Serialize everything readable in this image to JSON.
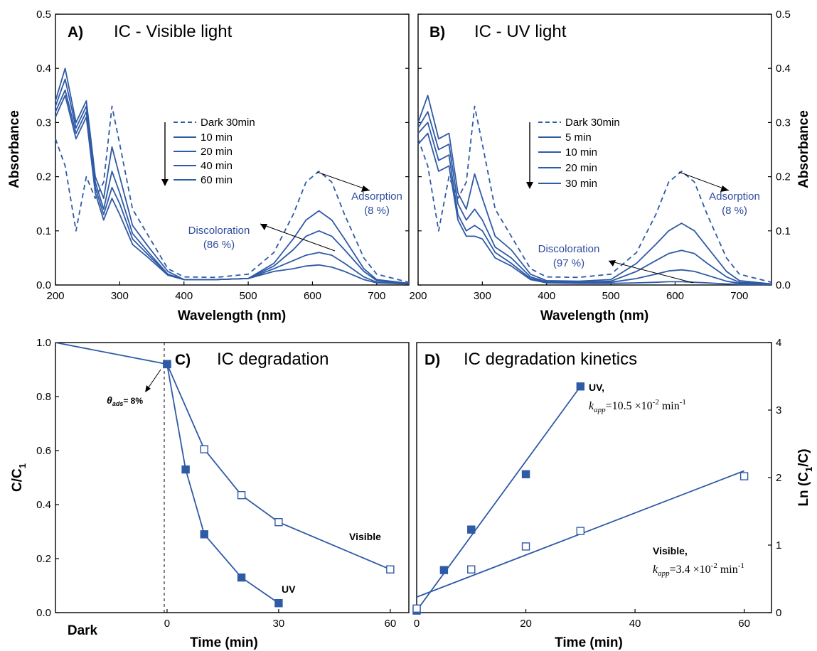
{
  "colors": {
    "series": "#2f5aa6",
    "annotation": "#2f4d9e",
    "axis": "#000000"
  },
  "chart_data": [
    {
      "panel": "A",
      "type": "line",
      "label": "A)",
      "title": "IC - Visible light",
      "xlabel": "Wavelength (nm)",
      "ylabel": "Absorbance",
      "xlim": [
        200,
        750
      ],
      "ylim": [
        0,
        0.5
      ],
      "xticks": [
        "200",
        "300",
        "400",
        "500",
        "600",
        "700"
      ],
      "yticks": [
        "0.0",
        "0.1",
        "0.2",
        "0.3",
        "0.4",
        "0.5"
      ],
      "series": [
        {
          "name": "Dark 30min",
          "style": "dashed",
          "x": [
            200,
            215,
            232,
            248,
            262,
            275,
            288,
            300,
            320,
            345,
            375,
            400,
            450,
            500,
            540,
            570,
            590,
            610,
            630,
            650,
            680,
            700,
            750
          ],
          "y": [
            0.27,
            0.22,
            0.1,
            0.2,
            0.16,
            0.19,
            0.33,
            0.26,
            0.14,
            0.09,
            0.03,
            0.015,
            0.014,
            0.02,
            0.06,
            0.13,
            0.19,
            0.21,
            0.19,
            0.13,
            0.05,
            0.02,
            0.005
          ]
        },
        {
          "name": "10 min",
          "style": "solid",
          "x": [
            200,
            215,
            232,
            248,
            262,
            275,
            288,
            300,
            320,
            345,
            375,
            400,
            450,
            500,
            540,
            570,
            590,
            610,
            630,
            650,
            680,
            700,
            750
          ],
          "y": [
            0.34,
            0.4,
            0.3,
            0.34,
            0.2,
            0.16,
            0.255,
            0.2,
            0.11,
            0.07,
            0.025,
            0.01,
            0.01,
            0.012,
            0.04,
            0.085,
            0.12,
            0.137,
            0.12,
            0.085,
            0.03,
            0.01,
            0.003
          ]
        },
        {
          "name": "20 min",
          "style": "solid",
          "x": [
            200,
            215,
            232,
            248,
            262,
            275,
            288,
            300,
            320,
            345,
            375,
            400,
            450,
            500,
            540,
            570,
            590,
            610,
            630,
            650,
            680,
            700,
            750
          ],
          "y": [
            0.33,
            0.38,
            0.29,
            0.33,
            0.19,
            0.14,
            0.21,
            0.17,
            0.095,
            0.06,
            0.02,
            0.01,
            0.01,
            0.012,
            0.035,
            0.065,
            0.09,
            0.1,
            0.09,
            0.065,
            0.025,
            0.008,
            0.002
          ]
        },
        {
          "name": "40 min",
          "style": "solid",
          "x": [
            200,
            215,
            232,
            248,
            262,
            275,
            288,
            300,
            320,
            345,
            375,
            400,
            450,
            500,
            540,
            570,
            590,
            610,
            630,
            650,
            680,
            700,
            750
          ],
          "y": [
            0.32,
            0.36,
            0.28,
            0.32,
            0.18,
            0.13,
            0.18,
            0.15,
            0.085,
            0.055,
            0.02,
            0.01,
            0.01,
            0.012,
            0.03,
            0.045,
            0.055,
            0.06,
            0.055,
            0.04,
            0.015,
            0.005,
            0.002
          ]
        },
        {
          "name": "60 min",
          "style": "solid",
          "x": [
            200,
            215,
            232,
            248,
            262,
            275,
            288,
            300,
            320,
            345,
            375,
            400,
            450,
            500,
            540,
            570,
            590,
            610,
            630,
            650,
            680,
            700,
            750
          ],
          "y": [
            0.31,
            0.35,
            0.27,
            0.31,
            0.17,
            0.12,
            0.16,
            0.13,
            0.075,
            0.05,
            0.018,
            0.01,
            0.01,
            0.012,
            0.025,
            0.03,
            0.035,
            0.037,
            0.033,
            0.025,
            0.01,
            0.004,
            0.002
          ]
        }
      ],
      "legend": [
        "Dark 30min",
        "10 min",
        "20 min",
        "40 min",
        "60 min"
      ],
      "annotations": {
        "adsorption": [
          "Adsorption",
          "(8 %)"
        ],
        "discoloration": [
          "Discoloration",
          "(86 %)"
        ]
      }
    },
    {
      "panel": "B",
      "type": "line",
      "label": "B)",
      "title": "IC - UV light",
      "xlabel": "Wavelength (nm)",
      "ylabel": "Absorbance",
      "xlim": [
        200,
        750
      ],
      "ylim": [
        0,
        0.5
      ],
      "xticks": [
        "200",
        "300",
        "400",
        "500",
        "600",
        "700"
      ],
      "yticks": [
        "0.0",
        "0.1",
        "0.2",
        "0.3",
        "0.4",
        "0.5"
      ],
      "series": [
        {
          "name": "Dark 30min",
          "style": "dashed",
          "x": [
            200,
            215,
            232,
            248,
            262,
            275,
            288,
            300,
            320,
            345,
            375,
            400,
            450,
            500,
            540,
            570,
            590,
            610,
            630,
            650,
            680,
            700,
            750
          ],
          "y": [
            0.27,
            0.22,
            0.1,
            0.2,
            0.16,
            0.19,
            0.33,
            0.26,
            0.14,
            0.09,
            0.03,
            0.015,
            0.014,
            0.02,
            0.06,
            0.13,
            0.19,
            0.21,
            0.19,
            0.13,
            0.05,
            0.02,
            0.005
          ]
        },
        {
          "name": "5 min",
          "style": "solid",
          "x": [
            200,
            215,
            232,
            248,
            262,
            275,
            288,
            300,
            320,
            345,
            375,
            400,
            450,
            500,
            540,
            570,
            590,
            610,
            630,
            650,
            680,
            700,
            750
          ],
          "y": [
            0.3,
            0.35,
            0.27,
            0.28,
            0.17,
            0.14,
            0.205,
            0.16,
            0.09,
            0.065,
            0.02,
            0.008,
            0.007,
            0.01,
            0.04,
            0.075,
            0.1,
            0.114,
            0.1,
            0.07,
            0.025,
            0.008,
            0.002
          ]
        },
        {
          "name": "10 min",
          "style": "solid",
          "x": [
            200,
            215,
            232,
            248,
            262,
            275,
            288,
            300,
            320,
            345,
            375,
            400,
            450,
            500,
            540,
            570,
            590,
            610,
            630,
            650,
            680,
            700,
            750
          ],
          "y": [
            0.29,
            0.32,
            0.25,
            0.26,
            0.15,
            0.12,
            0.14,
            0.12,
            0.07,
            0.05,
            0.015,
            0.006,
            0.005,
            0.007,
            0.025,
            0.045,
            0.058,
            0.064,
            0.058,
            0.04,
            0.015,
            0.005,
            0.002
          ]
        },
        {
          "name": "20 min",
          "style": "solid",
          "x": [
            200,
            215,
            232,
            248,
            262,
            275,
            288,
            300,
            320,
            345,
            375,
            400,
            450,
            500,
            540,
            570,
            590,
            610,
            630,
            650,
            680,
            700,
            750
          ],
          "y": [
            0.28,
            0.3,
            0.23,
            0.24,
            0.13,
            0.1,
            0.11,
            0.1,
            0.06,
            0.04,
            0.012,
            0.005,
            0.004,
            0.005,
            0.012,
            0.02,
            0.026,
            0.028,
            0.025,
            0.018,
            0.007,
            0.003,
            0.001
          ]
        },
        {
          "name": "30 min",
          "style": "solid",
          "x": [
            200,
            215,
            232,
            248,
            262,
            275,
            288,
            300,
            320,
            345,
            375,
            400,
            450,
            500,
            540,
            570,
            590,
            610,
            630,
            650,
            680,
            700,
            750
          ],
          "y": [
            0.26,
            0.28,
            0.21,
            0.22,
            0.12,
            0.09,
            0.09,
            0.085,
            0.05,
            0.035,
            0.01,
            0.004,
            0.003,
            0.003,
            0.004,
            0.005,
            0.006,
            0.006,
            0.005,
            0.004,
            0.002,
            0.001,
            0.001
          ]
        }
      ],
      "legend": [
        "Dark 30min",
        "5 min",
        "10 min",
        "20 min",
        "30 min"
      ],
      "annotations": {
        "adsorption": [
          "Adsorption",
          "(8 %)"
        ],
        "discoloration": [
          "Discoloration",
          "(97 %)"
        ]
      }
    },
    {
      "panel": "C",
      "type": "line",
      "label": "C)",
      "title": "IC degradation",
      "xlabel": "Time (min)",
      "ylabel_main": "C/C",
      "ylabel_sub": "1",
      "xlim": [
        -30,
        65
      ],
      "ylim": [
        0,
        1.0
      ],
      "xticks": [
        "0",
        "30",
        "60"
      ],
      "yticks": [
        "0.0",
        "0.2",
        "0.4",
        "0.6",
        "0.8",
        "1.0"
      ],
      "dark_label": "Dark",
      "series": [
        {
          "name": "Visible",
          "marker": "open-square",
          "x": [
            0,
            10,
            20,
            30,
            60
          ],
          "y": [
            0.92,
            0.605,
            0.435,
            0.335,
            0.16
          ]
        },
        {
          "name": "UV",
          "marker": "filled-square",
          "x": [
            0,
            5,
            10,
            20,
            30
          ],
          "y": [
            0.92,
            0.53,
            0.29,
            0.13,
            0.035
          ]
        }
      ],
      "dark_line": {
        "x": [
          -30,
          0
        ],
        "y": [
          1.0,
          0.92
        ]
      },
      "annotation": {
        "theta": "θ",
        "sub": "ads",
        "rest": "= 8%"
      }
    },
    {
      "panel": "D",
      "type": "scatter",
      "label": "D)",
      "title": "IC degradation kinetics",
      "xlabel": "Time (min)",
      "ylabel_main": "Ln (C",
      "ylabel_sub": "1",
      "ylabel_end": "/C)",
      "xlim": [
        0,
        65
      ],
      "ylim": [
        0,
        4
      ],
      "xticks": [
        "0",
        "20",
        "40",
        "60"
      ],
      "yticks": [
        "0",
        "1",
        "2",
        "3",
        "4"
      ],
      "series": [
        {
          "name": "UV",
          "marker": "filled-square",
          "x": [
            0,
            5,
            10,
            20,
            30
          ],
          "y": [
            0.03,
            0.63,
            1.23,
            2.05,
            3.35
          ],
          "fit": {
            "x": [
              0,
              30
            ],
            "y": [
              0.03,
              3.35
            ]
          },
          "label": "UV,",
          "k": "=10.5 ×10",
          "exp": "-2",
          "unit": " min",
          "unit_exp": "-1"
        },
        {
          "name": "Visible",
          "marker": "open-square",
          "x": [
            0,
            10,
            20,
            30,
            60
          ],
          "y": [
            0.06,
            0.64,
            0.98,
            1.21,
            2.02
          ],
          "fit": {
            "x": [
              0,
              60
            ],
            "y": [
              0.23,
              2.1
            ]
          },
          "label": "Visible,",
          "k": "=3.4 ×10",
          "exp": "-2",
          "unit": " min",
          "unit_exp": "-1"
        }
      ],
      "k_symbol": "k",
      "k_sub": "app"
    }
  ]
}
